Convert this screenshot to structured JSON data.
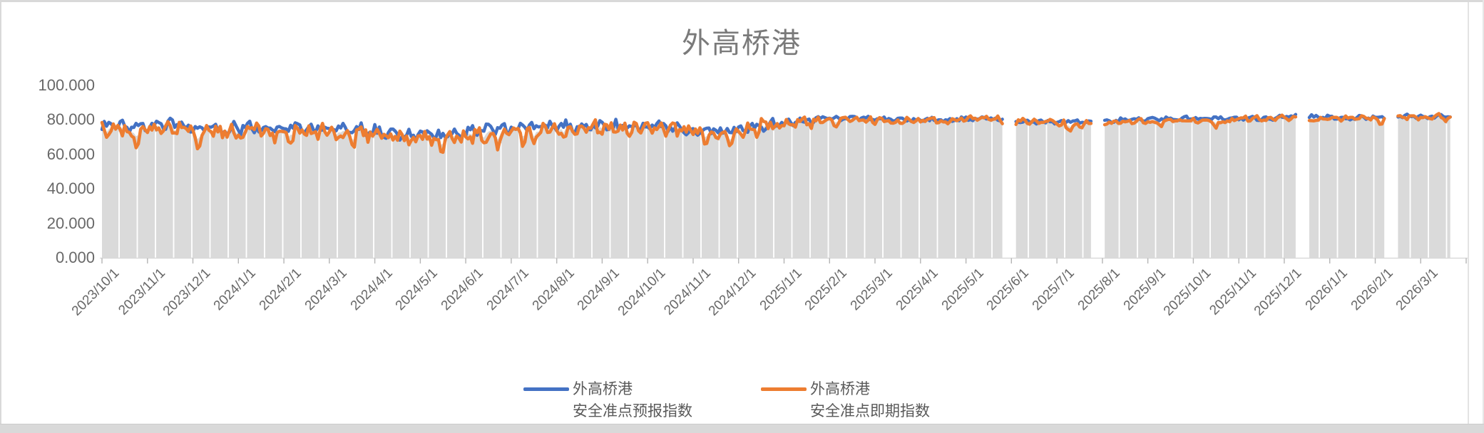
{
  "chart_data": {
    "type": "line",
    "title": "外高桥港",
    "y_ticks": [
      "0.000",
      "20.000",
      "40.000",
      "60.000",
      "80.000",
      "100.000"
    ],
    "ylim": [
      0,
      100
    ],
    "grid": "off",
    "legend_position": "bottom",
    "x_categories": [
      "2023/10/1",
      "2023/11/1",
      "2023/12/1",
      "2024/1/1",
      "2024/2/1",
      "2024/3/1",
      "2024/4/1",
      "2024/5/1",
      "2024/6/1",
      "2024/7/1",
      "2024/8/1",
      "2024/9/1",
      "2024/10/1",
      "2024/11/1",
      "2024/12/1",
      "2025/1/1",
      "2025/2/1",
      "2025/3/1",
      "2025/4/1",
      "2025/5/1",
      "2025/6/1",
      "2025/7/1",
      "2025/8/1",
      "2025/9/1",
      "2025/10/1",
      "2025/11/1",
      "2025/12/1",
      "2026/1/1",
      "2026/2/1",
      "2026/3/1"
    ],
    "series": [
      {
        "name": "外高桥港 安全准点预报指数",
        "name_line1": "外高桥港",
        "name_line2": "安全准点预报指数",
        "color": "#4472C4",
        "monthly_means": [
          76,
          77,
          75,
          76,
          75,
          75,
          72,
          71,
          74,
          76,
          76,
          77,
          76,
          73,
          77,
          80,
          81,
          80,
          80,
          81,
          79,
          79,
          80,
          81,
          81,
          81,
          82,
          81,
          82,
          82
        ]
      },
      {
        "name": "外高桥港 安全准点即期指数",
        "name_line1": "外高桥港",
        "name_line2": "安全准点即期指数",
        "color": "#ED7D31",
        "monthly_means": [
          75,
          76,
          73,
          74,
          74,
          74,
          70,
          69,
          72,
          74,
          75,
          76,
          75,
          72,
          77,
          80,
          81,
          80,
          80,
          81,
          79,
          78,
          79,
          80,
          80,
          81,
          81,
          81,
          81,
          82
        ]
      }
    ],
    "background_fill": {
      "type": "daily-columns",
      "color": "#dadada",
      "separator_color": "#ffffff"
    },
    "axis_color": "#d9d9d9",
    "tick_color": "#b5b5b5",
    "data_range_months": [
      0,
      29.67
    ],
    "data_gaps_months": [
      [
        19.85,
        20.1
      ],
      [
        21.8,
        22.05
      ],
      [
        26.3,
        26.55
      ],
      [
        28.25,
        28.5
      ]
    ],
    "volatility": {
      "early_noise_amp": 3.2,
      "late_noise_amp": 1.2,
      "transition_month": 15,
      "dip_depth_early": 12
    }
  }
}
